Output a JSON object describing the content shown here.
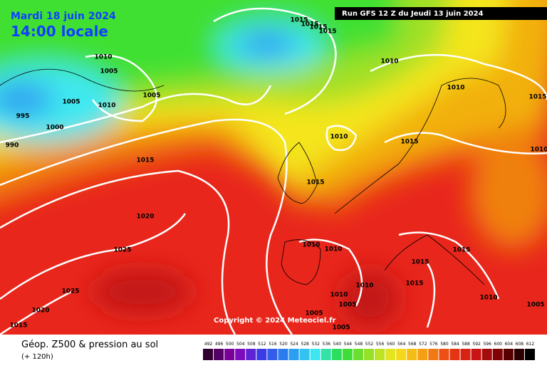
{
  "header": {
    "date": "Mardi 18 juin 2024",
    "time": "14:00 locale",
    "run": "Run GFS 12 Z du Jeudi 13 juin 2024"
  },
  "copyright": "Copyright © 2024 Meteociel.fr",
  "legend": {
    "title": "Géop. Z500 & pression au sol",
    "lead": "(+ 120h)",
    "scale": [
      492,
      496,
      500,
      504,
      508,
      512,
      516,
      520,
      524,
      528,
      532,
      536,
      540,
      544,
      548,
      552,
      556,
      560,
      564,
      568,
      572,
      576,
      580,
      584,
      588,
      592,
      596,
      600,
      604,
      608,
      612
    ]
  },
  "isobar_labels": [
    1015,
    1015,
    1015,
    1015,
    1010,
    1005,
    1010,
    1005,
    1010,
    1005,
    1010,
    1015,
    995,
    1000,
    990,
    1010,
    1015,
    1010,
    1015,
    1015,
    1020,
    1010,
    1010,
    1015,
    1025,
    1015,
    1015,
    1010,
    1025,
    1010,
    1005,
    1010,
    1020,
    1005,
    1005,
    1015,
    1005
  ]
}
